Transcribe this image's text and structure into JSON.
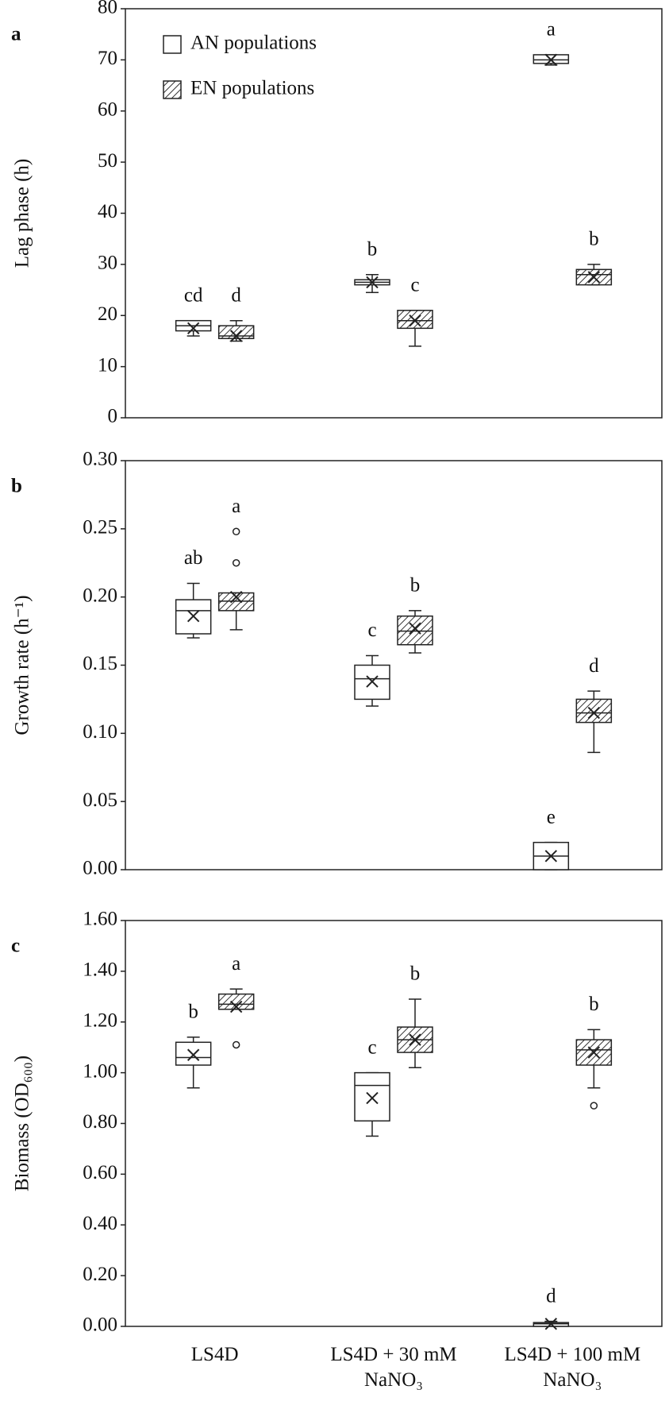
{
  "chart_data": [
    {
      "type": "box",
      "panel_label": "a",
      "ylabel": "Lag phase (h)",
      "ylim": [
        0,
        80
      ],
      "yticks": [
        0,
        10,
        20,
        30,
        40,
        50,
        60,
        70,
        80
      ],
      "legend": "upper-left",
      "series": [
        {
          "name": "AN populations",
          "color": "#ffffff",
          "hatch": false,
          "min": [
            16,
            24.5,
            69
          ],
          "q1": [
            17,
            26,
            69.3
          ],
          "median": [
            18,
            26.5,
            70
          ],
          "q3": [
            19,
            27,
            71
          ],
          "max": [
            19,
            28,
            71
          ],
          "mean": [
            17.5,
            26.5,
            70
          ],
          "outliers": [
            [],
            [],
            []
          ],
          "letters": [
            "cd",
            "b",
            "a"
          ]
        },
        {
          "name": "EN populations",
          "color": "#ffffff",
          "hatch": true,
          "min": [
            15,
            14,
            26
          ],
          "q1": [
            15.5,
            17.5,
            26
          ],
          "median": [
            16,
            19,
            28
          ],
          "q3": [
            18,
            21,
            29
          ],
          "max": [
            19,
            21,
            30
          ],
          "mean": [
            16,
            19,
            27.5
          ],
          "outliers": [
            [],
            [],
            []
          ],
          "letters": [
            "d",
            "c",
            "b"
          ]
        }
      ]
    },
    {
      "type": "box",
      "panel_label": "b",
      "ylabel": "Growth rate (h⁻¹)",
      "ylim": [
        0,
        0.3
      ],
      "yticks": [
        {
          "value": 0,
          "label": "0.00"
        },
        {
          "value": 0.05,
          "label": "0.05"
        },
        {
          "value": 0.1,
          "label": "0.10"
        },
        {
          "value": 0.15,
          "label": "0.15"
        },
        {
          "value": 0.2,
          "label": "0.20"
        },
        {
          "value": 0.25,
          "label": "0.25"
        },
        {
          "value": 0.3,
          "label": "0.30"
        }
      ],
      "series": [
        {
          "color": "#ffffff",
          "hatch": false,
          "min": [
            0.17,
            0.12,
            0
          ],
          "q1": [
            0.173,
            0.125,
            0
          ],
          "median": [
            0.19,
            0.14,
            0.01
          ],
          "q3": [
            0.198,
            0.15,
            0.02
          ],
          "max": [
            0.21,
            0.157,
            0.02
          ],
          "mean": [
            0.186,
            0.138,
            0.01
          ],
          "outliers": [
            [],
            [],
            []
          ],
          "letters": [
            "ab",
            "c",
            "e"
          ]
        },
        {
          "color": "#ffffff",
          "hatch": true,
          "min": [
            0.176,
            0.159,
            0.086
          ],
          "q1": [
            0.19,
            0.165,
            0.108
          ],
          "median": [
            0.197,
            0.175,
            0.115
          ],
          "q3": [
            0.203,
            0.186,
            0.125
          ],
          "max": [
            0.203,
            0.19,
            0.131
          ],
          "mean": [
            0.2,
            0.177,
            0.115
          ],
          "outliers": [
            [
              0.225,
              0.248
            ],
            [],
            []
          ],
          "letters": [
            "a",
            "b",
            "d"
          ]
        }
      ]
    },
    {
      "type": "box",
      "panel_label": "c",
      "ylabel": "Biomass (OD₆₀₀)",
      "categories": [
        "LS4D",
        "LS4D + 30 mM NaNO₃",
        "LS4D + 100 mM NaNO₃"
      ],
      "ylim": [
        0,
        1.6
      ],
      "yticks": [
        {
          "value": 0,
          "label": "0.00"
        },
        {
          "value": 0.2,
          "label": "0.20"
        },
        {
          "value": 0.4,
          "label": "0.40"
        },
        {
          "value": 0.6,
          "label": "0.60"
        },
        {
          "value": 0.8,
          "label": "0.80"
        },
        {
          "value": 1,
          "label": "1.00"
        },
        {
          "value": 1.2,
          "label": "1.20"
        },
        {
          "value": 1.4,
          "label": "1.40"
        },
        {
          "value": 1.6,
          "label": "1.60"
        }
      ],
      "series": [
        {
          "color": "#ffffff",
          "hatch": false,
          "min": [
            0.94,
            0.75,
            0
          ],
          "q1": [
            1.03,
            0.81,
            0
          ],
          "median": [
            1.06,
            0.95,
            0.01
          ],
          "q3": [
            1.12,
            1.0,
            0.015
          ],
          "max": [
            1.14,
            1.0,
            0.02
          ],
          "mean": [
            1.07,
            0.9,
            0.01
          ],
          "outliers": [
            [],
            [],
            []
          ],
          "letters": [
            "b",
            "c",
            "d"
          ]
        },
        {
          "color": "#ffffff",
          "hatch": true,
          "min": [
            1.25,
            1.02,
            0.94
          ],
          "q1": [
            1.25,
            1.08,
            1.03
          ],
          "median": [
            1.27,
            1.13,
            1.09
          ],
          "q3": [
            1.31,
            1.18,
            1.13
          ],
          "max": [
            1.33,
            1.29,
            1.17
          ],
          "mean": [
            1.26,
            1.13,
            1.08
          ],
          "outliers": [
            [
              1.11
            ],
            [],
            [
              0.87
            ]
          ],
          "letters": [
            "a",
            "b",
            "b"
          ]
        }
      ]
    }
  ]
}
